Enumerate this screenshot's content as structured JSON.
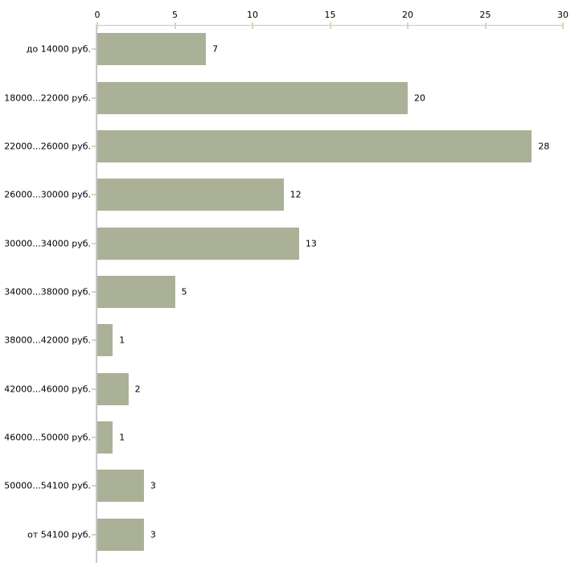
{
  "chart_data": {
    "type": "bar",
    "orientation": "horizontal",
    "title": "",
    "xlabel": "",
    "ylabel": "",
    "categories": [
      "до 14000 руб.",
      "18000...22000 руб.",
      "22000...26000 руб.",
      "26000...30000 руб.",
      "30000...34000 руб.",
      "34000...38000 руб.",
      "38000...42000 руб.",
      "42000...46000 руб.",
      "46000...50000 руб.",
      "50000...54100 руб.",
      "от 54100 руб."
    ],
    "values": [
      7,
      20,
      28,
      12,
      13,
      5,
      1,
      2,
      1,
      3,
      3
    ],
    "xlim": [
      0,
      30
    ],
    "x_ticks": [
      0,
      5,
      10,
      15,
      20,
      25,
      30
    ],
    "axis_position": "top",
    "grid": false,
    "legend_position": "none",
    "colors": {
      "bar_fill": "#aab197",
      "axis_line": "#c8c8c8",
      "tick_mark": "#d6d8b0",
      "text": "#000000",
      "background": "#ffffff"
    }
  }
}
